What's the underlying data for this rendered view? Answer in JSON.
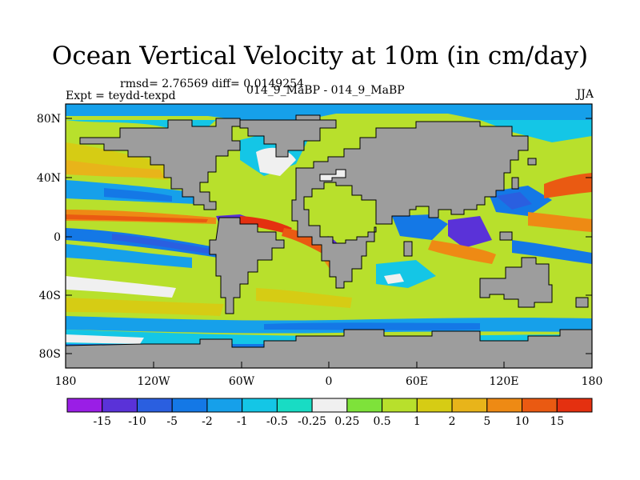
{
  "title": "Ocean Vertical Velocity at 10m (in cm/day)",
  "header": {
    "rmsd_text": "rmsd= 2.76569 diff= 0.0149254",
    "expt_text": "Expt = teydd-texpd",
    "center_text": "014_9_MaBP - 014_9_MaBP",
    "season": "JJA"
  },
  "axes": {
    "x_ticks": [
      "180",
      "120W",
      "60W",
      "0",
      "60E",
      "120E",
      "180"
    ],
    "y_ticks": [
      "80N",
      "40N",
      "0",
      "40S",
      "80S"
    ]
  },
  "colorbar": {
    "labels": [
      "-15",
      "-10",
      "-5",
      "-2",
      "-1",
      "-0.5",
      "-0.25",
      "0.25",
      "0.5",
      "1",
      "2",
      "5",
      "10",
      "15"
    ],
    "colors": [
      "#9a1ee6",
      "#5a32d8",
      "#2a5fe0",
      "#1478e6",
      "#16a0ea",
      "#14c6e6",
      "#18dcc4",
      "#f0f0f0",
      "#7ee23a",
      "#b8e02c",
      "#d6cc14",
      "#e8b41a",
      "#ee8a14",
      "#ea5a12",
      "#e43010"
    ]
  },
  "colors": {
    "land": "#9d9d9d",
    "ocean_default": "#b8e02c"
  }
}
